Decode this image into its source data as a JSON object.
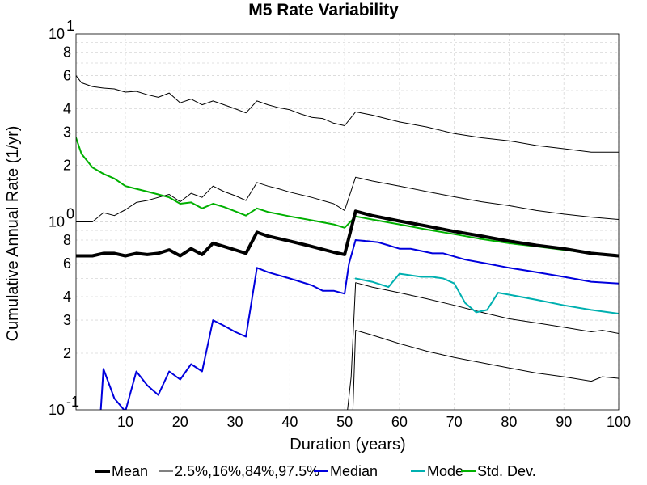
{
  "chart_data": {
    "type": "line",
    "title": "M5 Rate Variability",
    "xlabel": "Duration (years)",
    "ylabel": "Cumulative Annual Rate (1/yr)",
    "xlim": [
      1,
      100
    ],
    "ylim": [
      0.1,
      10
    ],
    "yscale": "log",
    "grid": true,
    "legend_position": "bottom",
    "x_ticks": [
      10,
      20,
      30,
      40,
      50,
      60,
      70,
      80,
      90,
      100
    ],
    "x_tick_labels": [
      "10",
      "20",
      "30",
      "40",
      "50",
      "60",
      "70",
      "80",
      "90",
      "100"
    ],
    "y_decade_ticks": [
      {
        "value": 0.1,
        "base": "10",
        "exp": "-1"
      },
      {
        "value": 1,
        "base": "10",
        "exp": "0"
      },
      {
        "value": 10,
        "base": "10",
        "exp": "1"
      }
    ],
    "y_minor_ticks": [
      {
        "value": 0.2,
        "label": "2"
      },
      {
        "value": 0.3,
        "label": "3"
      },
      {
        "value": 0.4,
        "label": "4"
      },
      {
        "value": 0.6,
        "label": "6"
      },
      {
        "value": 0.8,
        "label": "8"
      },
      {
        "value": 2,
        "label": "2"
      },
      {
        "value": 3,
        "label": "3"
      },
      {
        "value": 4,
        "label": "4"
      },
      {
        "value": 6,
        "label": "6"
      },
      {
        "value": 8,
        "label": "8"
      }
    ],
    "legend": [
      {
        "label": "Mean",
        "color": "#000000",
        "width": 4
      },
      {
        "label": "2.5%,16%,84%,97.5%",
        "color": "#000000",
        "width": 1
      },
      {
        "label": "Median",
        "color": "#0000dd",
        "width": 2
      },
      {
        "label": "Mode",
        "color": "#00b0b0",
        "width": 2
      },
      {
        "label": "Std. Dev.",
        "color": "#00b000",
        "width": 2
      }
    ],
    "series": [
      {
        "name": "Mean",
        "color": "#000000",
        "width": 4,
        "points": [
          [
            1,
            0.66
          ],
          [
            4,
            0.66
          ],
          [
            6,
            0.68
          ],
          [
            8,
            0.68
          ],
          [
            10,
            0.66
          ],
          [
            12,
            0.68
          ],
          [
            14,
            0.67
          ],
          [
            16,
            0.68
          ],
          [
            18,
            0.71
          ],
          [
            20,
            0.66
          ],
          [
            22,
            0.72
          ],
          [
            24,
            0.67
          ],
          [
            26,
            0.77
          ],
          [
            28,
            0.74
          ],
          [
            30,
            0.71
          ],
          [
            32,
            0.68
          ],
          [
            34,
            0.88
          ],
          [
            36,
            0.84
          ],
          [
            40,
            0.79
          ],
          [
            44,
            0.74
          ],
          [
            48,
            0.69
          ],
          [
            50,
            0.67
          ],
          [
            52,
            1.14
          ],
          [
            55,
            1.08
          ],
          [
            60,
            1.01
          ],
          [
            65,
            0.95
          ],
          [
            70,
            0.89
          ],
          [
            75,
            0.84
          ],
          [
            80,
            0.79
          ],
          [
            85,
            0.75
          ],
          [
            90,
            0.72
          ],
          [
            95,
            0.68
          ],
          [
            100,
            0.66
          ]
        ]
      },
      {
        "name": "97.5%",
        "color": "#000000",
        "width": 1,
        "points": [
          [
            1,
            6.0
          ],
          [
            2,
            5.5
          ],
          [
            4,
            5.25
          ],
          [
            6,
            5.15
          ],
          [
            8,
            5.1
          ],
          [
            10,
            4.9
          ],
          [
            12,
            4.95
          ],
          [
            14,
            4.75
          ],
          [
            16,
            4.6
          ],
          [
            18,
            4.85
          ],
          [
            20,
            4.3
          ],
          [
            22,
            4.5
          ],
          [
            24,
            4.2
          ],
          [
            26,
            4.4
          ],
          [
            28,
            4.2
          ],
          [
            30,
            4.0
          ],
          [
            32,
            3.8
          ],
          [
            34,
            4.4
          ],
          [
            36,
            4.2
          ],
          [
            38,
            4.05
          ],
          [
            40,
            3.95
          ],
          [
            42,
            3.75
          ],
          [
            44,
            3.6
          ],
          [
            46,
            3.55
          ],
          [
            48,
            3.35
          ],
          [
            50,
            3.25
          ],
          [
            52,
            3.85
          ],
          [
            55,
            3.7
          ],
          [
            60,
            3.4
          ],
          [
            65,
            3.2
          ],
          [
            70,
            2.95
          ],
          [
            75,
            2.8
          ],
          [
            80,
            2.7
          ],
          [
            85,
            2.55
          ],
          [
            90,
            2.45
          ],
          [
            95,
            2.35
          ],
          [
            100,
            2.35
          ]
        ]
      },
      {
        "name": "84%",
        "color": "#000000",
        "width": 1,
        "points": [
          [
            1,
            1.0
          ],
          [
            4,
            1.0
          ],
          [
            6,
            1.12
          ],
          [
            8,
            1.08
          ],
          [
            10,
            1.16
          ],
          [
            12,
            1.27
          ],
          [
            14,
            1.3
          ],
          [
            16,
            1.35
          ],
          [
            18,
            1.4
          ],
          [
            20,
            1.28
          ],
          [
            22,
            1.42
          ],
          [
            24,
            1.35
          ],
          [
            26,
            1.55
          ],
          [
            28,
            1.45
          ],
          [
            30,
            1.38
          ],
          [
            32,
            1.3
          ],
          [
            34,
            1.62
          ],
          [
            36,
            1.55
          ],
          [
            38,
            1.5
          ],
          [
            40,
            1.44
          ],
          [
            44,
            1.35
          ],
          [
            48,
            1.25
          ],
          [
            50,
            1.15
          ],
          [
            52,
            1.73
          ],
          [
            55,
            1.65
          ],
          [
            60,
            1.55
          ],
          [
            65,
            1.45
          ],
          [
            70,
            1.36
          ],
          [
            75,
            1.28
          ],
          [
            80,
            1.22
          ],
          [
            85,
            1.15
          ],
          [
            90,
            1.1
          ],
          [
            95,
            1.06
          ],
          [
            100,
            1.03
          ]
        ]
      },
      {
        "name": "16%",
        "color": "#000000",
        "width": 1,
        "points": [
          [
            50.5,
            0.085
          ],
          [
            51.2,
            0.15
          ],
          [
            52,
            0.475
          ],
          [
            55,
            0.45
          ],
          [
            60,
            0.42
          ],
          [
            65,
            0.39
          ],
          [
            70,
            0.36
          ],
          [
            75,
            0.33
          ],
          [
            80,
            0.305
          ],
          [
            85,
            0.29
          ],
          [
            90,
            0.275
          ],
          [
            95,
            0.26
          ],
          [
            97,
            0.265
          ],
          [
            100,
            0.255
          ]
        ]
      },
      {
        "name": "2.5%",
        "color": "#000000",
        "width": 1,
        "points": [
          [
            51.5,
            0.085
          ],
          [
            52,
            0.265
          ],
          [
            55,
            0.25
          ],
          [
            60,
            0.225
          ],
          [
            65,
            0.205
          ],
          [
            70,
            0.19
          ],
          [
            75,
            0.178
          ],
          [
            80,
            0.167
          ],
          [
            85,
            0.157
          ],
          [
            90,
            0.15
          ],
          [
            95,
            0.142
          ],
          [
            97,
            0.15
          ],
          [
            100,
            0.147
          ]
        ]
      },
      {
        "name": "Median",
        "color": "#0000dd",
        "width": 2,
        "points": [
          [
            5.5,
            0.085
          ],
          [
            6,
            0.165
          ],
          [
            8,
            0.115
          ],
          [
            10,
            0.098
          ],
          [
            12,
            0.16
          ],
          [
            14,
            0.135
          ],
          [
            16,
            0.12
          ],
          [
            18,
            0.16
          ],
          [
            20,
            0.145
          ],
          [
            22,
            0.175
          ],
          [
            24,
            0.16
          ],
          [
            26,
            0.3
          ],
          [
            28,
            0.28
          ],
          [
            30,
            0.26
          ],
          [
            32,
            0.245
          ],
          [
            34,
            0.57
          ],
          [
            36,
            0.54
          ],
          [
            40,
            0.5
          ],
          [
            44,
            0.46
          ],
          [
            46,
            0.43
          ],
          [
            48,
            0.43
          ],
          [
            50,
            0.415
          ],
          [
            50.8,
            0.6
          ],
          [
            52,
            0.8
          ],
          [
            54,
            0.79
          ],
          [
            56,
            0.78
          ],
          [
            58,
            0.75
          ],
          [
            60,
            0.72
          ],
          [
            62,
            0.72
          ],
          [
            64,
            0.7
          ],
          [
            66,
            0.68
          ],
          [
            68,
            0.68
          ],
          [
            72,
            0.63
          ],
          [
            76,
            0.6
          ],
          [
            80,
            0.57
          ],
          [
            85,
            0.54
          ],
          [
            90,
            0.51
          ],
          [
            95,
            0.48
          ],
          [
            100,
            0.47
          ]
        ]
      },
      {
        "name": "Mode",
        "color": "#00b0b0",
        "width": 2,
        "points": [
          [
            52,
            0.5
          ],
          [
            55,
            0.48
          ],
          [
            58,
            0.45
          ],
          [
            60,
            0.53
          ],
          [
            62,
            0.52
          ],
          [
            64,
            0.51
          ],
          [
            66,
            0.51
          ],
          [
            68,
            0.5
          ],
          [
            70,
            0.47
          ],
          [
            72,
            0.37
          ],
          [
            74,
            0.33
          ],
          [
            76,
            0.34
          ],
          [
            78,
            0.42
          ],
          [
            80,
            0.41
          ],
          [
            85,
            0.385
          ],
          [
            90,
            0.36
          ],
          [
            95,
            0.34
          ],
          [
            100,
            0.325
          ]
        ]
      },
      {
        "name": "Std. Dev.",
        "color": "#00b000",
        "width": 2,
        "points": [
          [
            1,
            2.8
          ],
          [
            2,
            2.3
          ],
          [
            4,
            1.95
          ],
          [
            6,
            1.8
          ],
          [
            8,
            1.7
          ],
          [
            10,
            1.55
          ],
          [
            12,
            1.5
          ],
          [
            14,
            1.45
          ],
          [
            16,
            1.4
          ],
          [
            18,
            1.35
          ],
          [
            20,
            1.25
          ],
          [
            22,
            1.27
          ],
          [
            24,
            1.18
          ],
          [
            26,
            1.25
          ],
          [
            28,
            1.2
          ],
          [
            30,
            1.14
          ],
          [
            32,
            1.08
          ],
          [
            34,
            1.18
          ],
          [
            36,
            1.13
          ],
          [
            40,
            1.07
          ],
          [
            44,
            1.02
          ],
          [
            48,
            0.97
          ],
          [
            50,
            0.93
          ],
          [
            52,
            1.07
          ],
          [
            55,
            1.03
          ],
          [
            60,
            0.97
          ],
          [
            65,
            0.91
          ],
          [
            70,
            0.86
          ],
          [
            75,
            0.81
          ],
          [
            80,
            0.77
          ],
          [
            85,
            0.74
          ],
          [
            90,
            0.71
          ],
          [
            95,
            0.68
          ],
          [
            100,
            0.66
          ]
        ]
      }
    ]
  }
}
